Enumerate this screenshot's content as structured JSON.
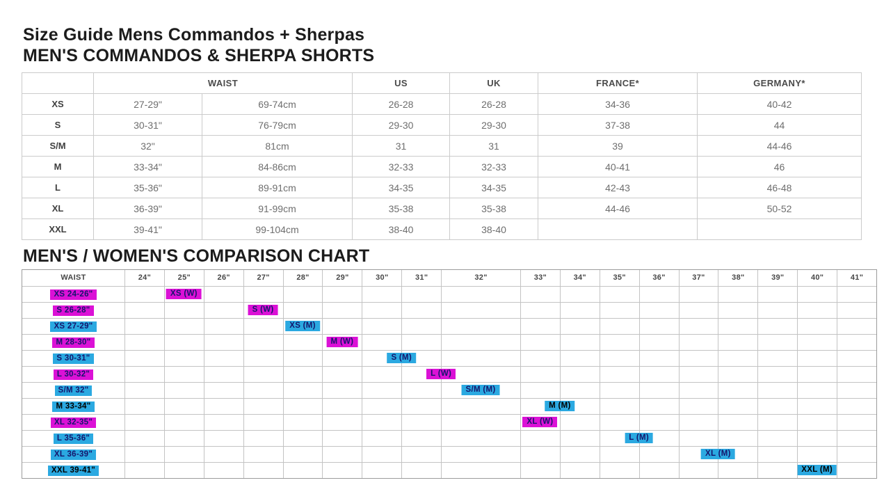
{
  "page": {
    "title": "Size Guide Mens Commandos + Sherpas",
    "subtitle": "MEN'S COMMANDOS & SHERPA SHORTS",
    "chart_title": "MEN'S / WOMEN'S COMPARISON CHART"
  },
  "size_table": {
    "headers": {
      "waist": "WAIST",
      "us": "US",
      "uk": "UK",
      "france": "FRANCE*",
      "germany": "GERMANY*"
    },
    "rows": [
      {
        "size": "XS",
        "waist_in": "27-29\"",
        "waist_cm": "69-74cm",
        "us": "26-28",
        "uk": "26-28",
        "france": "34-36",
        "germany": "40-42"
      },
      {
        "size": "S",
        "waist_in": "30-31\"",
        "waist_cm": "76-79cm",
        "us": "29-30",
        "uk": "29-30",
        "france": "37-38",
        "germany": "44"
      },
      {
        "size": "S/M",
        "waist_in": "32\"",
        "waist_cm": "81cm",
        "us": "31",
        "uk": "31",
        "france": "39",
        "germany": "44-46"
      },
      {
        "size": "M",
        "waist_in": "33-34\"",
        "waist_cm": "84-86cm",
        "us": "32-33",
        "uk": "32-33",
        "france": "40-41",
        "germany": "46"
      },
      {
        "size": "L",
        "waist_in": "35-36\"",
        "waist_cm": "89-91cm",
        "us": "34-35",
        "uk": "34-35",
        "france": "42-43",
        "germany": "46-48"
      },
      {
        "size": "XL",
        "waist_in": "36-39\"",
        "waist_cm": "91-99cm",
        "us": "35-38",
        "uk": "35-38",
        "france": "44-46",
        "germany": "50-52"
      },
      {
        "size": "XXL",
        "waist_in": "39-41\"",
        "waist_cm": "99-104cm",
        "us": "38-40",
        "uk": "38-40",
        "france": "",
        "germany": ""
      }
    ]
  },
  "comparison_chart": {
    "waist_header": "WAIST",
    "inch_columns": [
      "24\"",
      "25\"",
      "26\"",
      "27\"",
      "28\"",
      "29\"",
      "30\"",
      "31\"",
      "32\"",
      "33\"",
      "34\"",
      "35\"",
      "36\"",
      "37\"",
      "38\"",
      "39\"",
      "40\"",
      "41\""
    ],
    "colors": {
      "women": "#db11d6",
      "men": "#2ba9e1"
    },
    "rows": [
      {
        "label": "XS 24-26\"",
        "gender": "women",
        "bar_label": "XS (W)",
        "bar_at": 25,
        "emphasis": false
      },
      {
        "label": "S 26-28\"",
        "gender": "women",
        "bar_label": "S (W)",
        "bar_at": 27,
        "emphasis": false
      },
      {
        "label": "XS 27-29\"",
        "gender": "men",
        "bar_label": "XS (M)",
        "bar_at": 28,
        "emphasis": false
      },
      {
        "label": "M 28-30\"",
        "gender": "women",
        "bar_label": "M (W)",
        "bar_at": 29,
        "emphasis": false
      },
      {
        "label": "S 30-31\"",
        "gender": "men",
        "bar_label": "S (M)",
        "bar_at": 30.5,
        "emphasis": false
      },
      {
        "label": "L 30-32\"",
        "gender": "women",
        "bar_label": "L (W)",
        "bar_at": 31.5,
        "emphasis": false
      },
      {
        "label": "S/M 32\"",
        "gender": "men",
        "bar_label": "S/M (M)",
        "bar_at": 32,
        "emphasis": false
      },
      {
        "label": "M 33-34\"",
        "gender": "men",
        "bar_label": "M (M)",
        "bar_at": 33.5,
        "emphasis": true
      },
      {
        "label": "XL 32-35\"",
        "gender": "women",
        "bar_label": "XL (W)",
        "bar_at": 33,
        "emphasis": false
      },
      {
        "label": "L 35-36\"",
        "gender": "men",
        "bar_label": "L (M)",
        "bar_at": 35.5,
        "emphasis": false
      },
      {
        "label": "XL 36-39\"",
        "gender": "men",
        "bar_label": "XL (M)",
        "bar_at": 37.5,
        "emphasis": false
      },
      {
        "label": "XXL 39-41\"",
        "gender": "men",
        "bar_label": "XXL (M)",
        "bar_at": 40,
        "emphasis": true
      }
    ]
  },
  "chart_data": {
    "type": "table",
    "title": "MEN'S / WOMEN'S COMPARISON CHART",
    "xlabel": "WAIST",
    "x_ticks": [
      "24\"",
      "25\"",
      "26\"",
      "27\"",
      "28\"",
      "29\"",
      "30\"",
      "31\"",
      "32\"",
      "33\"",
      "34\"",
      "35\"",
      "36\"",
      "37\"",
      "38\"",
      "39\"",
      "40\"",
      "41\""
    ],
    "series": [
      {
        "name": "XS (W)",
        "waist_range": "24-26\"",
        "plotted_at_inches": 25
      },
      {
        "name": "S (W)",
        "waist_range": "26-28\"",
        "plotted_at_inches": 27
      },
      {
        "name": "XS (M)",
        "waist_range": "27-29\"",
        "plotted_at_inches": 28
      },
      {
        "name": "M (W)",
        "waist_range": "28-30\"",
        "plotted_at_inches": 29
      },
      {
        "name": "S (M)",
        "waist_range": "30-31\"",
        "plotted_at_inches": 30.5
      },
      {
        "name": "L (W)",
        "waist_range": "30-32\"",
        "plotted_at_inches": 31.5
      },
      {
        "name": "S/M (M)",
        "waist_range": "32\"",
        "plotted_at_inches": 32
      },
      {
        "name": "M (M)",
        "waist_range": "33-34\"",
        "plotted_at_inches": 33.5
      },
      {
        "name": "XL (W)",
        "waist_range": "32-35\"",
        "plotted_at_inches": 33
      },
      {
        "name": "L (M)",
        "waist_range": "35-36\"",
        "plotted_at_inches": 35.5
      },
      {
        "name": "XL (M)",
        "waist_range": "36-39\"",
        "plotted_at_inches": 37.5
      },
      {
        "name": "XXL (M)",
        "waist_range": "39-41\"",
        "plotted_at_inches": 40
      }
    ]
  }
}
